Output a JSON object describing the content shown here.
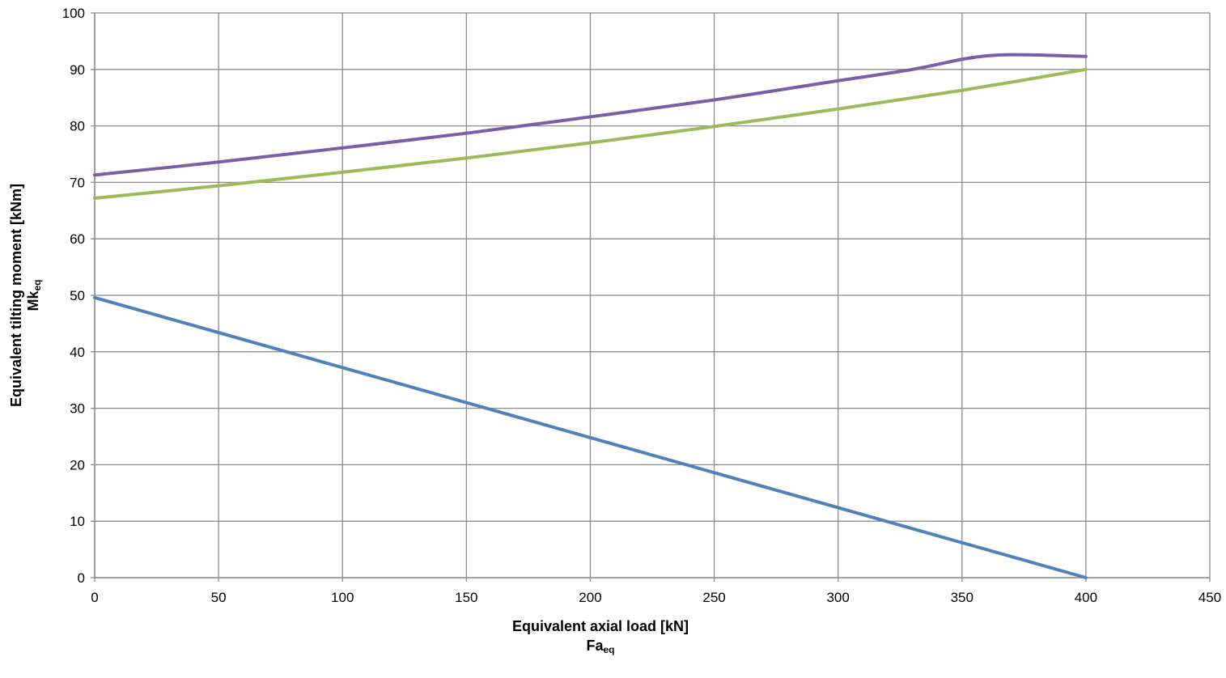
{
  "chart_data": {
    "type": "line",
    "title": "",
    "xlabel": "Equivalent axial load [kN]",
    "xlabel_sym": "Fa",
    "xlabel_sub": "eq",
    "ylabel": "Equivalent tilting moment [kNm]",
    "ylabel_sym": "Mk",
    "ylabel_sub": "eq",
    "xlim": [
      0,
      450
    ],
    "ylim": [
      0,
      100
    ],
    "xticks": [
      0,
      50,
      100,
      150,
      200,
      250,
      300,
      350,
      400,
      450
    ],
    "yticks": [
      0,
      10,
      20,
      30,
      40,
      50,
      60,
      70,
      80,
      90,
      100
    ],
    "grid": true,
    "legend": "none",
    "series": [
      {
        "name": "purple",
        "color": "#7b5ea7",
        "x": [
          0,
          50,
          100,
          150,
          200,
          250,
          300,
          330,
          350,
          360,
          370,
          385,
          400
        ],
        "y": [
          71.3,
          73.6,
          76.1,
          78.7,
          81.6,
          84.6,
          88.0,
          90.0,
          91.8,
          92.4,
          92.6,
          92.5,
          92.3
        ]
      },
      {
        "name": "green",
        "color": "#9bbb59",
        "x": [
          0,
          50,
          100,
          150,
          200,
          250,
          300,
          350,
          400
        ],
        "y": [
          67.2,
          69.4,
          71.8,
          74.3,
          77.0,
          79.9,
          83.0,
          86.3,
          90.0
        ]
      },
      {
        "name": "blue",
        "color": "#4f81bd",
        "x": [
          0,
          400
        ],
        "y": [
          49.6,
          0
        ]
      }
    ]
  }
}
